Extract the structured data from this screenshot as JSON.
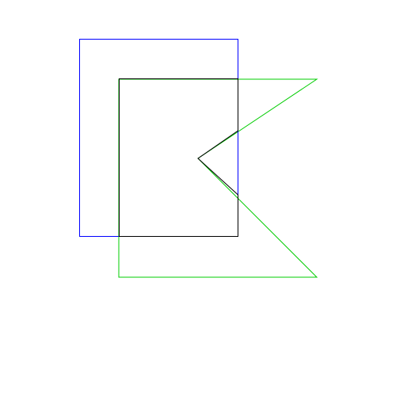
{
  "colors": {
    "background": "#ffffff",
    "blue_rectangle": "#0000ff",
    "green_polygon": "#00cc00",
    "black_polygon": "#000000"
  }
}
